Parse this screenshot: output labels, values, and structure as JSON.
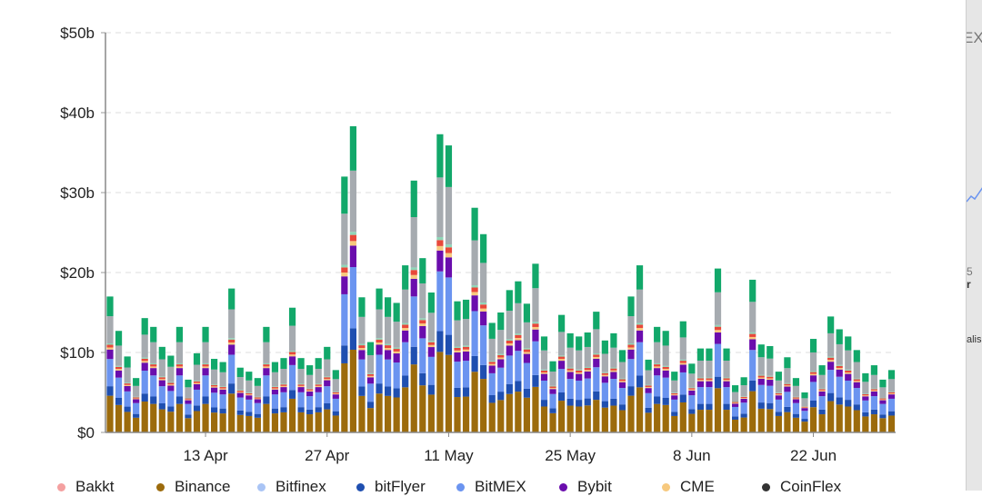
{
  "chart_data": {
    "type": "bar",
    "stacked": true,
    "title": "",
    "xlabel": "",
    "ylabel": "",
    "ylim": [
      0,
      50
    ],
    "y_unit": "USD billions",
    "y_ticks": [
      "$0",
      "$10b",
      "$20b",
      "$30b",
      "$40b",
      "$50b"
    ],
    "x_ticks": [
      "13 Apr",
      "27 Apr",
      "11 May",
      "25 May",
      "8 Jun",
      "22 Jun"
    ],
    "x_tick_days": [
      13,
      27,
      41,
      55,
      69,
      83
    ],
    "x_start": "2 Apr",
    "x_end": "1 Jul",
    "grid": "horizontal dashed",
    "legend_placement": "bottom",
    "totals": [
      17.0,
      12.7,
      9.5,
      6.8,
      14.3,
      13.2,
      10.7,
      9.6,
      13.2,
      6.6,
      9.9,
      13.2,
      9.2,
      8.8,
      18.0,
      8.1,
      7.6,
      6.8,
      13.2,
      8.8,
      9.3,
      15.6,
      9.3,
      8.4,
      9.3,
      10.7,
      7.8,
      32.0,
      38.3,
      16.9,
      11.3,
      18.0,
      16.9,
      16.2,
      20.9,
      31.5,
      21.8,
      17.5,
      37.3,
      35.9,
      16.4,
      16.6,
      28.1,
      24.8,
      13.7,
      15.0,
      17.8,
      18.9,
      16.1,
      21.1,
      12.0,
      8.9,
      14.7,
      12.4,
      12.0,
      12.5,
      15.1,
      11.5,
      12.4,
      10.3,
      17.0,
      20.9,
      9.1,
      13.2,
      12.7,
      7.6,
      13.9,
      8.6,
      10.5,
      10.5,
      20.5,
      10.5,
      5.9,
      6.9,
      19.1,
      11.0,
      10.8,
      7.6,
      9.4,
      6.8,
      5.0,
      11.7,
      8.4,
      14.5,
      12.9,
      12.0,
      10.3,
      7.4,
      8.4,
      6.6,
      7.8
    ],
    "stack_series": [
      {
        "name": "Binance",
        "color": "#9c6b0c",
        "share": 0.27
      },
      {
        "name": "bitFlyer",
        "color": "#1f4fb0",
        "share": 0.07
      },
      {
        "name": "BitMEX",
        "color": "#6b94f0",
        "share": 0.2
      },
      {
        "name": "Bybit",
        "color": "#6a0dad",
        "share": 0.07
      },
      {
        "name": "CME",
        "color": "#f7c97e",
        "share": 0.015
      },
      {
        "color": "#e8483a",
        "share": 0.02
      },
      {
        "color": "#8fd6b8",
        "share": 0.01
      },
      {
        "color": "#a6abb0",
        "share": 0.2
      },
      {
        "color": "#12a86a",
        "share": 0.145
      }
    ]
  },
  "legend": [
    {
      "label": "Bakkt",
      "color": "#f4a0a0"
    },
    {
      "label": "Binance",
      "color": "#9c6b0c"
    },
    {
      "label": "Bitfinex",
      "color": "#a9c4f5"
    },
    {
      "label": "bitFlyer",
      "color": "#1f4fb0"
    },
    {
      "label": "BitMEX",
      "color": "#6b94f0"
    },
    {
      "label": "Bybit",
      "color": "#6a0dad"
    },
    {
      "label": "CME",
      "color": "#f7c97e"
    },
    {
      "label": "CoinFlex",
      "color": "#333333"
    }
  ],
  "side_panel": {
    "frag1": "EX",
    "frag2": "5",
    "frag3": "r",
    "frag4": "alis"
  }
}
